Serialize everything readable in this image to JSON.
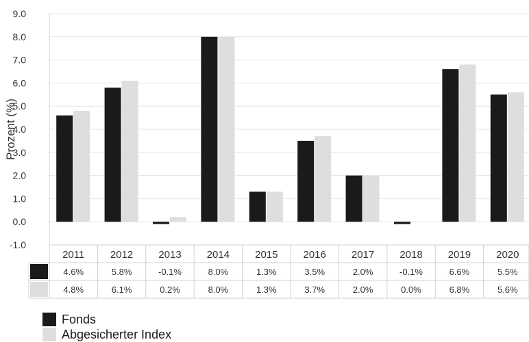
{
  "colors": {
    "series1": "#1a1a1a",
    "series2": "#dedede",
    "grid": "#e6e6e6",
    "axis": "#d0d0d0",
    "text": "#333333"
  },
  "chart_data": {
    "type": "bar",
    "title": "",
    "xlabel": "",
    "ylabel": "Prozent (%)",
    "ylim": [
      -1.0,
      9.0
    ],
    "yticks": [
      -1.0,
      0.0,
      1.0,
      2.0,
      3.0,
      4.0,
      5.0,
      6.0,
      7.0,
      8.0,
      9.0
    ],
    "ytick_labels": [
      "-1.0",
      "0.0",
      "1.0",
      "2.0",
      "3.0",
      "4.0",
      "5.0",
      "6.0",
      "7.0",
      "8.0",
      "9.0"
    ],
    "grid": true,
    "legend_position": "bottom-left",
    "categories": [
      "2011",
      "2012",
      "2013",
      "2014",
      "2015",
      "2016",
      "2017",
      "2018",
      "2019",
      "2020"
    ],
    "series": [
      {
        "name": "Fonds",
        "values": [
          4.6,
          5.8,
          -0.1,
          8.0,
          1.3,
          3.5,
          2.0,
          -0.1,
          6.6,
          5.5
        ],
        "labels": [
          "4.6%",
          "5.8%",
          "-0.1%",
          "8.0%",
          "1.3%",
          "3.5%",
          "2.0%",
          "-0.1%",
          "6.6%",
          "5.5%"
        ]
      },
      {
        "name": "Abgesicherter Index",
        "values": [
          4.8,
          6.1,
          0.2,
          8.0,
          1.3,
          3.7,
          2.0,
          0.0,
          6.8,
          5.6
        ],
        "labels": [
          "4.8%",
          "6.1%",
          "0.2%",
          "8.0%",
          "1.3%",
          "3.7%",
          "2.0%",
          "0.0%",
          "6.8%",
          "5.6%"
        ]
      }
    ]
  }
}
